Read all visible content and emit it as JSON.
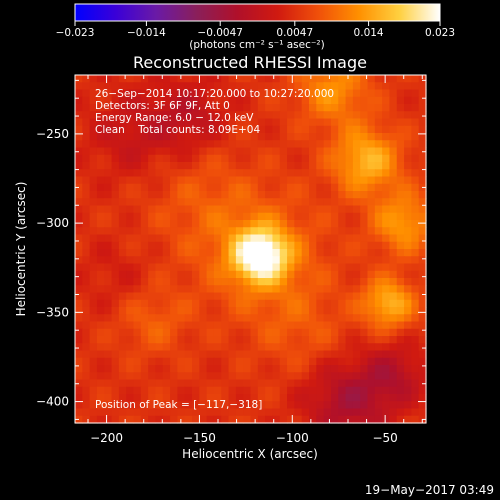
{
  "chart_data": {
    "type": "heatmap",
    "title": "Reconstructed RHESSI Image",
    "xlabel": "Heliocentric X (arcsec)",
    "ylabel": "Heliocentric Y (arcsec)",
    "xlim": [
      -217,
      -28
    ],
    "ylim": [
      -412,
      -217
    ],
    "x_ticks": [
      -200,
      -150,
      -100,
      -50
    ],
    "x_tick_labels": [
      "−200",
      "−150",
      "−100",
      "−50"
    ],
    "y_ticks": [
      -250,
      -300,
      -350,
      -400
    ],
    "y_tick_labels": [
      "−250",
      "−300",
      "−350",
      "−400"
    ],
    "colorbar": {
      "range": [
        -0.023,
        0.023
      ],
      "ticks": [
        -0.023,
        -0.014,
        -0.0047,
        0.0047,
        0.014,
        0.023
      ],
      "tick_labels": [
        "−0.023",
        "−0.014",
        "−0.0047",
        "0.0047",
        "0.014",
        "0.023"
      ],
      "units_label": "(photons cm⁻² s⁻¹ asec⁻²)",
      "colormap": [
        "#0000ff",
        "#3a00d8",
        "#6a1aa6",
        "#8a1f5a",
        "#b0102a",
        "#d01a10",
        "#f0500a",
        "#ff9000",
        "#ffd040",
        "#ffffff"
      ]
    },
    "info_lines": [
      "26−Sep−2014 10:17:20.000 to 10:27:20.000",
      "Detectors: 3F 6F 9F, Att 0",
      "Energy Range: 6.0 − 12.0 keV",
      "Clean    Total counts: 8.09E+04"
    ],
    "peak_label": "Position of Peak = [−117,−318]",
    "peak_position": [
      -117,
      -318
    ],
    "peak_value": 0.023,
    "background_level": 0.0047,
    "sources": [
      {
        "x": -117,
        "y": -318,
        "amp": 0.018,
        "sigma": 10
      },
      {
        "x": -117,
        "y": -318,
        "amp": 0.006,
        "sigma": 24
      },
      {
        "x": -60,
        "y": -265,
        "amp": 0.011,
        "sigma": 13
      },
      {
        "x": -40,
        "y": -300,
        "amp": 0.009,
        "sigma": 12
      },
      {
        "x": -48,
        "y": -345,
        "amp": 0.011,
        "sigma": 10
      },
      {
        "x": -78,
        "y": -225,
        "amp": 0.008,
        "sigma": 14
      },
      {
        "x": -175,
        "y": -355,
        "amp": 0.004,
        "sigma": 14
      },
      {
        "x": -150,
        "y": -285,
        "amp": 0.003,
        "sigma": 22
      },
      {
        "x": -95,
        "y": -360,
        "amp": 0.003,
        "sigma": 18
      },
      {
        "x": -185,
        "y": -250,
        "amp": -0.004,
        "sigma": 18
      },
      {
        "x": -155,
        "y": -240,
        "amp": -0.005,
        "sigma": 14
      },
      {
        "x": -70,
        "y": -400,
        "amp": -0.008,
        "sigma": 16
      },
      {
        "x": -45,
        "y": -385,
        "amp": -0.006,
        "sigma": 12
      },
      {
        "x": -195,
        "y": -330,
        "amp": -0.002,
        "sigma": 14
      }
    ],
    "grid": false,
    "legend": "none"
  },
  "footer": {
    "timestamp": "19−May−2017 03:49"
  }
}
